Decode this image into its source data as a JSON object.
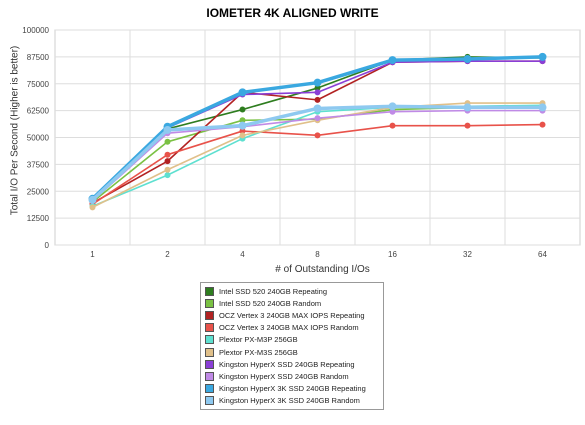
{
  "chart_data": {
    "type": "line",
    "title": "IOMETER 4K ALIGNED WRITE",
    "xlabel": "# of Outstanding I/Os",
    "ylabel": "Total I/O Per Second (Higher is better)",
    "categories": [
      "1",
      "2",
      "4",
      "8",
      "16",
      "32",
      "64"
    ],
    "ylim": [
      0,
      100000
    ],
    "yticks": [
      "0",
      "12500",
      "25000",
      "37500",
      "50000",
      "62500",
      "75000",
      "87500",
      "100000"
    ],
    "grid": true,
    "legend_position": "bottom",
    "series": [
      {
        "name": "Intel SSD 520 240GB Repeating",
        "color": "#2e7d1f",
        "values": [
          20500,
          54000,
          63000,
          73000,
          86000,
          87500,
          87000
        ]
      },
      {
        "name": "Intel SSD 520 240GB Random",
        "color": "#7ac143",
        "values": [
          20000,
          48000,
          58000,
          58500,
          63000,
          64000,
          64500
        ]
      },
      {
        "name": "OCZ Vertex 3 240GB MAX IOPS Repeating",
        "color": "#b22222",
        "values": [
          19500,
          39000,
          71000,
          67500,
          85000,
          85500,
          85500
        ]
      },
      {
        "name": "OCZ Vertex 3 240GB MAX IOPS Random",
        "color": "#e8524a",
        "values": [
          19000,
          42000,
          53000,
          51000,
          55500,
          55500,
          56000
        ]
      },
      {
        "name": "Plextor PX-M3P 256GB",
        "color": "#5ee0d0",
        "values": [
          18000,
          32500,
          49500,
          62000,
          64000,
          64500,
          65000
        ]
      },
      {
        "name": "Plextor PX-M3S 256GB",
        "color": "#e0c08a",
        "values": [
          17500,
          35000,
          51000,
          58000,
          64000,
          66000,
          66000
        ]
      },
      {
        "name": "Kingston HyperX SSD 240GB Repeating",
        "color": "#8a3fd6",
        "values": [
          21000,
          54500,
          70000,
          71000,
          85000,
          85500,
          85500
        ]
      },
      {
        "name": "Kingston HyperX SSD 240GB Random",
        "color": "#c08ae6",
        "values": [
          20500,
          52000,
          55000,
          59000,
          62000,
          62500,
          62500
        ]
      },
      {
        "name": "Kingston HyperX 3K SSD 240GB Repeating",
        "color": "#3aa8e0",
        "values": [
          21500,
          55000,
          71000,
          75500,
          86000,
          86500,
          87500
        ]
      },
      {
        "name": "Kingston HyperX 3K SSD 240GB Random",
        "color": "#8ec9f0",
        "values": [
          21000,
          53500,
          55500,
          63500,
          64500,
          64000,
          64000
        ]
      }
    ]
  }
}
